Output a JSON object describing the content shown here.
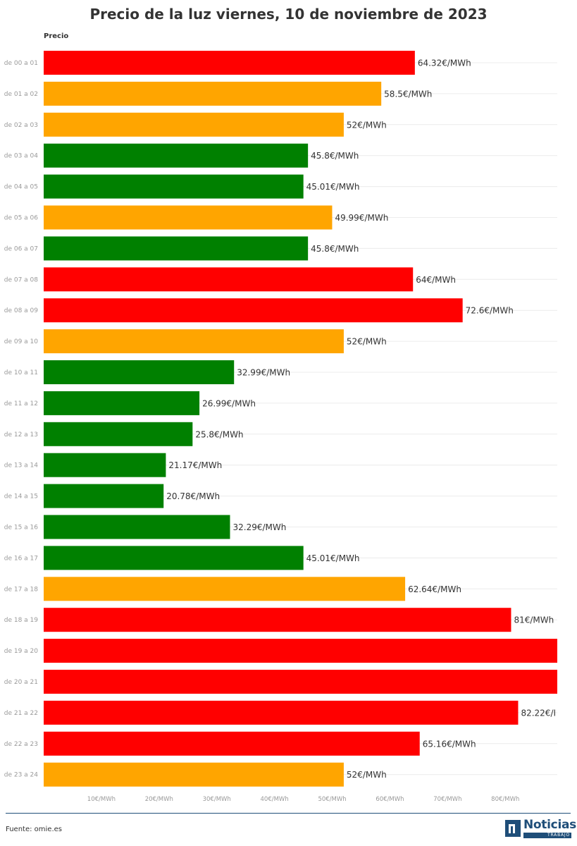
{
  "chart_data": {
    "type": "bar",
    "orientation": "horizontal",
    "title": "Precio de la luz viernes, 10 de noviembre de 2023",
    "series_label": "Precio",
    "categories": [
      "de 00 a 01",
      "de 01 a 02",
      "de 02 a 03",
      "de 03 a 04",
      "de 04 a 05",
      "de 05 a 06",
      "de 06 a 07",
      "de 07 a 08",
      "de 08 a 09",
      "de 09 a 10",
      "de 10 a 11",
      "de 11 a 12",
      "de 12 a 13",
      "de 13 a 14",
      "de 14 a 15",
      "de 15 a 16",
      "de 16 a 17",
      "de 17 a 18",
      "de 18 a 19",
      "de 19 a 20",
      "de 20 a 21",
      "de 21 a 22",
      "de 22 a 23",
      "de 23 a 24"
    ],
    "values": [
      64.32,
      58.5,
      52,
      45.8,
      45.01,
      49.99,
      45.8,
      64,
      72.6,
      52,
      32.99,
      26.99,
      25.8,
      21.17,
      20.78,
      32.29,
      45.01,
      62.64,
      81,
      89,
      89,
      82.22,
      65.16,
      52
    ],
    "value_labels": [
      "64.32€/MWh",
      "58.5€/MWh",
      "52€/MWh",
      "45.8€/MWh",
      "45.01€/MWh",
      "49.99€/MWh",
      "45.8€/MWh",
      "64€/MWh",
      "72.6€/MWh",
      "52€/MWh",
      "32.99€/MWh",
      "26.99€/MWh",
      "25.8€/MWh",
      "21.17€/MWh",
      "20.78€/MWh",
      "32.29€/MWh",
      "45.01€/MWh",
      "62.64€/MWh",
      "81€/MWh",
      "",
      "",
      "82.22€/I",
      "65.16€/MWh",
      "52€/MWh"
    ],
    "colors": [
      "red",
      "orange",
      "orange",
      "green",
      "green",
      "orange",
      "green",
      "red",
      "red",
      "orange",
      "green",
      "green",
      "green",
      "green",
      "green",
      "green",
      "green",
      "orange",
      "red",
      "red",
      "red",
      "red",
      "red",
      "orange"
    ],
    "palette": {
      "red": "#ff0000",
      "orange": "#ffa500",
      "green": "#008000"
    },
    "xlim": [
      0,
      89
    ],
    "xticks": [
      10,
      20,
      30,
      40,
      50,
      60,
      70,
      80
    ],
    "xtick_labels": [
      "10€/MWh",
      "20€/MWh",
      "30€/MWh",
      "40€/MWh",
      "50€/MWh",
      "60€/MWh",
      "70€/MWh",
      "80€/MWh"
    ],
    "grid": true,
    "legend": "none"
  },
  "footer": {
    "source": "Fuente: omie.es",
    "logo_brand": "Noticias",
    "logo_sub": "TRABAJO"
  }
}
